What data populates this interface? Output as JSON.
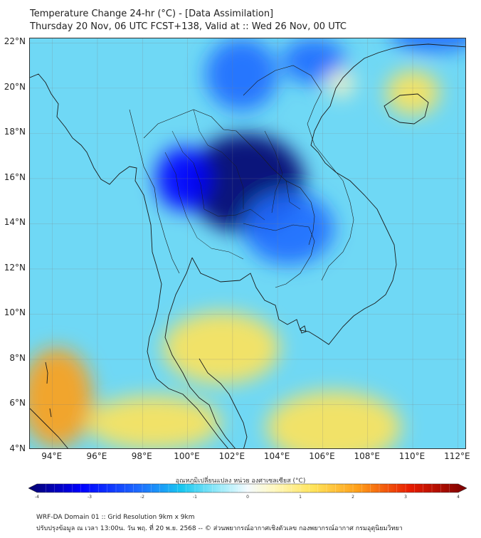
{
  "title": {
    "line1": "Temperature Change 24-hr (°C) - [Data Assimilation]",
    "line2": "Thursday 20 Nov, 06 UTC FCST+138, Valid at :: Wed 26 Nov, 00 UTC"
  },
  "map": {
    "lat_labels": [
      "22°N",
      "20°N",
      "18°N",
      "16°N",
      "14°N",
      "12°N",
      "10°N",
      "8°N",
      "6°N",
      "4°N"
    ],
    "lon_labels": [
      "94°E",
      "96°E",
      "98°E",
      "100°E",
      "102°E",
      "104°E",
      "106°E",
      "108°E",
      "110°E",
      "112°E"
    ],
    "lat_range": [
      4,
      22.2
    ],
    "lon_range": [
      93,
      112.4
    ],
    "fields": [
      {
        "name": "cold-core-northeast-thailand",
        "lon": 102.6,
        "lat": 15.8,
        "value": -4.2,
        "spread_lon": 2.6,
        "spread_lat": 2.2
      },
      {
        "name": "cold-west-thailand",
        "lon": 99.8,
        "lat": 16.0,
        "value": -3.0,
        "spread_lon": 1.2,
        "spread_lat": 1.4
      },
      {
        "name": "cold-laos-north",
        "lon": 102.4,
        "lat": 20.6,
        "value": -2.6,
        "spread_lon": 1.6,
        "spread_lat": 1.6
      },
      {
        "name": "cold-gulf-tonkin",
        "lon": 105.6,
        "lat": 21.2,
        "value": -2.4,
        "spread_lon": 1.4,
        "spread_lat": 1.0
      },
      {
        "name": "cold-top-right",
        "lon": 111.0,
        "lat": 22.4,
        "value": -2.8,
        "spread_lon": 2.0,
        "spread_lat": 0.8
      },
      {
        "name": "cold-central",
        "lon": 104.5,
        "lat": 13.8,
        "value": -2.8,
        "spread_lon": 2.0,
        "spread_lat": 1.6
      },
      {
        "name": "warm-andaman-south",
        "lon": 94.2,
        "lat": 6.3,
        "value": 1.6,
        "spread_lon": 1.6,
        "spread_lat": 2.2
      },
      {
        "name": "warm-south-sea",
        "lon": 98.5,
        "lat": 5.2,
        "value": 1.0,
        "spread_lon": 3.0,
        "spread_lat": 1.2
      },
      {
        "name": "warm-gulf-thailand",
        "lon": 101.5,
        "lat": 8.5,
        "value": 0.9,
        "spread_lon": 2.6,
        "spread_lat": 1.6
      },
      {
        "name": "warm-scs-south",
        "lon": 106.5,
        "lat": 5.0,
        "value": 0.6,
        "spread_lon": 3.0,
        "spread_lat": 1.6
      },
      {
        "name": "warm-hainan-east",
        "lon": 110.0,
        "lat": 19.8,
        "value": 0.6,
        "spread_lon": 1.2,
        "spread_lat": 1.0
      },
      {
        "name": "warm-ne-corner",
        "lon": 106.8,
        "lat": 20.2,
        "value": 0.5,
        "spread_lon": 0.6,
        "spread_lat": 0.6
      }
    ]
  },
  "colorbar": {
    "label": "อุณหภูมิเปลี่ยนแปลง หน่วย องศาเซลเซียส (°C)",
    "ticks": [
      "-4",
      "-3",
      "-2",
      "-1",
      "0",
      "1",
      "2",
      "3",
      "4"
    ],
    "min": -4,
    "max": 4
  },
  "footer": {
    "line1": "WRF-DA Domain 01 :: Grid Resolution 9km x 9km",
    "line2": "ปรับปรุงข้อมูล ณ เวลา 13:00น. วัน พฤ. ที่ 20 พ.ย. 2568 -- © ส่วนพยากรณ์อากาศเชิงตัวเลข กองพยากรณ์อากาศ กรมอุตุนิยมวิทยา"
  }
}
